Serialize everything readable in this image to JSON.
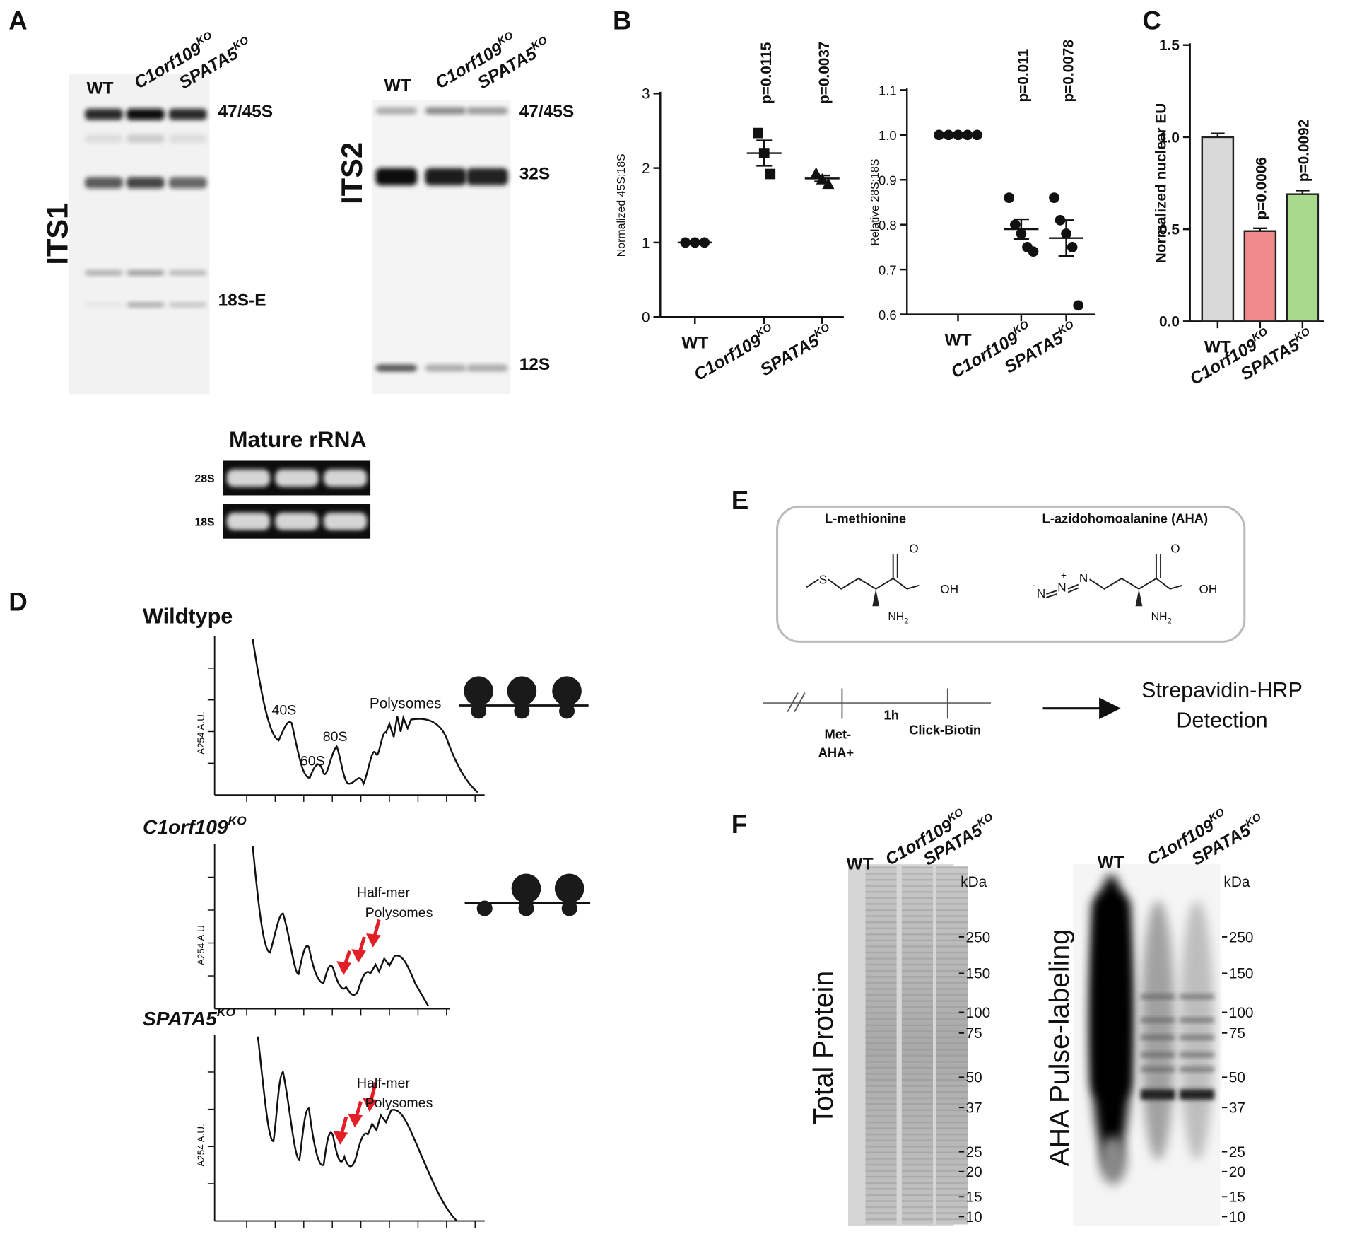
{
  "panel_labels": [
    "A",
    "B",
    "C",
    "D",
    "E",
    "F"
  ],
  "genotypes": [
    {
      "name": "WT"
    },
    {
      "name": "C1orf109",
      "sup": "KO"
    },
    {
      "name": "SPATA5",
      "sup": "KO"
    }
  ],
  "panel_a": {
    "its1": {
      "label": "ITS1",
      "bands": [
        "47/45S",
        "18S-E"
      ]
    },
    "its2": {
      "label": "ITS2",
      "bands": [
        "47/45S",
        "32S",
        "12S"
      ]
    },
    "mature": {
      "title": "Mature rRNA",
      "rows": [
        "28S",
        "18S"
      ]
    }
  },
  "chart_data": [
    {
      "type": "dot",
      "y_label": "Normalized 45S:18S",
      "categories": [
        "WT",
        "C1orf109",
        "SPATA5"
      ],
      "category_superscripts": [
        null,
        "KO",
        "KO"
      ],
      "points": [
        [
          1,
          1,
          1
        ],
        [
          2.47,
          2.2,
          1.92
        ],
        [
          1.93,
          1.85,
          1.79
        ]
      ],
      "means": [
        1,
        2.2,
        1.86
      ],
      "errors": [
        0,
        0.17,
        0.04
      ],
      "markers": [
        "circle",
        "square",
        "triangle"
      ],
      "color": "#111111",
      "p_values": [
        null,
        "p=0.0115",
        "p=0.0037"
      ],
      "ylim": [
        0,
        3
      ],
      "yticks": [
        0,
        1,
        2,
        3
      ]
    },
    {
      "type": "dot",
      "y_label": "Relative 28S:18S",
      "categories": [
        "WT",
        "C1orf109",
        "SPATA5"
      ],
      "category_superscripts": [
        null,
        "KO",
        "KO"
      ],
      "points": [
        [
          1,
          1,
          1,
          1,
          1
        ],
        [
          0.86,
          0.8,
          0.78,
          0.75,
          0.74
        ],
        [
          0.86,
          0.81,
          0.78,
          0.75,
          0.62
        ]
      ],
      "means": [
        1,
        0.79,
        0.77
      ],
      "errors": [
        0,
        0.022,
        0.04
      ],
      "markers": [
        "circle",
        "circle",
        "circle"
      ],
      "color": "#111111",
      "p_values": [
        null,
        "p=0.011",
        "p=0.0078"
      ],
      "ylim": [
        0.6,
        1.1
      ],
      "yticks": [
        0.6,
        0.7,
        0.8,
        0.9,
        {
          "value": 1,
          "label": "1.0"
        },
        1.1
      ]
    },
    {
      "type": "bar",
      "y_label": "Normalized nuclear EU",
      "categories": [
        "WT",
        "C1orf109",
        "SPATA5"
      ],
      "category_superscripts": [
        null,
        "KO",
        "KO"
      ],
      "values": [
        1.0,
        0.49,
        0.69
      ],
      "errors": [
        0.02,
        0.015,
        0.02
      ],
      "colors": [
        "#d9d9d9",
        "#f08a8a",
        "#a9d98c"
      ],
      "p_values": [
        null,
        "p=0.0006",
        "p=0.0092"
      ],
      "ylim": [
        0,
        1.5
      ],
      "yticks": [
        {
          "value": 0,
          "label": "0.0"
        },
        0.5,
        {
          "value": 1,
          "label": "1.0"
        },
        1.5
      ]
    }
  ],
  "panel_d": {
    "title": "Wildtype",
    "y_label": "A254 A.U.",
    "peaks": [
      "40S",
      "60S",
      "80S",
      "Polysomes"
    ],
    "annotation": [
      "Half-mer",
      "Polysomes"
    ]
  },
  "panel_e": {
    "methionine": {
      "name": "L-methionine",
      "s": "S",
      "o": "O",
      "oh": "OH",
      "amine": "NH",
      "amine_sub": "2"
    },
    "aha": {
      "name": "L-azidohomoalanine (AHA)",
      "n": "N",
      "minus": "-",
      "plus": "+",
      "o": "O",
      "oh": "OH",
      "amine": "NH",
      "amine_sub": "2"
    },
    "timeline": [
      "Met-",
      "AHA+",
      "1h",
      "Click-Biotin"
    ],
    "detection": [
      "Strepavidin-HRP",
      "Detection"
    ]
  },
  "panel_f": {
    "total_label": "Total Protein",
    "aha_label": "AHA Pulse-labeling",
    "unit": "kDa",
    "markers": [
      250,
      150,
      100,
      75,
      50,
      37,
      25,
      20,
      15,
      10
    ]
  }
}
